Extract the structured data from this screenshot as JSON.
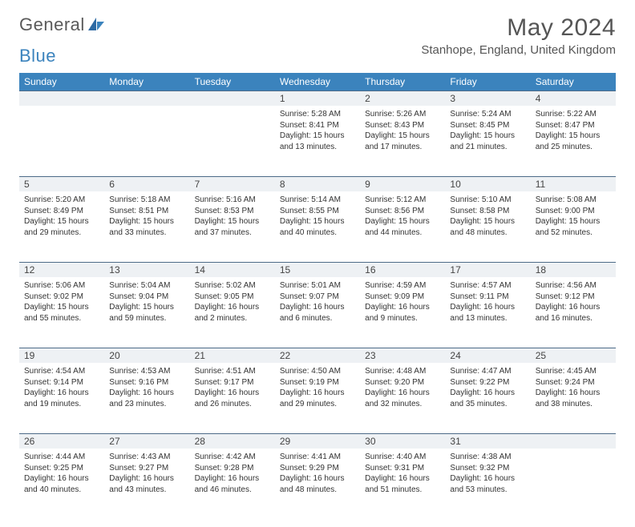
{
  "brand": {
    "word1": "General",
    "word2": "Blue"
  },
  "title": "May 2024",
  "location": "Stanhope, England, United Kingdom",
  "colors": {
    "header_bg": "#3b83bd",
    "header_text": "#ffffff",
    "daynum_bg": "#eef1f4",
    "daynum_border": "#4d6b88",
    "body_text": "#333333",
    "title_text": "#555555"
  },
  "weekdays": [
    "Sunday",
    "Monday",
    "Tuesday",
    "Wednesday",
    "Thursday",
    "Friday",
    "Saturday"
  ],
  "weeks": [
    [
      null,
      null,
      null,
      {
        "n": "1",
        "sr": "5:28 AM",
        "ss": "8:41 PM",
        "dl1": "15 hours",
        "dl2": "and 13 minutes."
      },
      {
        "n": "2",
        "sr": "5:26 AM",
        "ss": "8:43 PM",
        "dl1": "15 hours",
        "dl2": "and 17 minutes."
      },
      {
        "n": "3",
        "sr": "5:24 AM",
        "ss": "8:45 PM",
        "dl1": "15 hours",
        "dl2": "and 21 minutes."
      },
      {
        "n": "4",
        "sr": "5:22 AM",
        "ss": "8:47 PM",
        "dl1": "15 hours",
        "dl2": "and 25 minutes."
      }
    ],
    [
      {
        "n": "5",
        "sr": "5:20 AM",
        "ss": "8:49 PM",
        "dl1": "15 hours",
        "dl2": "and 29 minutes."
      },
      {
        "n": "6",
        "sr": "5:18 AM",
        "ss": "8:51 PM",
        "dl1": "15 hours",
        "dl2": "and 33 minutes."
      },
      {
        "n": "7",
        "sr": "5:16 AM",
        "ss": "8:53 PM",
        "dl1": "15 hours",
        "dl2": "and 37 minutes."
      },
      {
        "n": "8",
        "sr": "5:14 AM",
        "ss": "8:55 PM",
        "dl1": "15 hours",
        "dl2": "and 40 minutes."
      },
      {
        "n": "9",
        "sr": "5:12 AM",
        "ss": "8:56 PM",
        "dl1": "15 hours",
        "dl2": "and 44 minutes."
      },
      {
        "n": "10",
        "sr": "5:10 AM",
        "ss": "8:58 PM",
        "dl1": "15 hours",
        "dl2": "and 48 minutes."
      },
      {
        "n": "11",
        "sr": "5:08 AM",
        "ss": "9:00 PM",
        "dl1": "15 hours",
        "dl2": "and 52 minutes."
      }
    ],
    [
      {
        "n": "12",
        "sr": "5:06 AM",
        "ss": "9:02 PM",
        "dl1": "15 hours",
        "dl2": "and 55 minutes."
      },
      {
        "n": "13",
        "sr": "5:04 AM",
        "ss": "9:04 PM",
        "dl1": "15 hours",
        "dl2": "and 59 minutes."
      },
      {
        "n": "14",
        "sr": "5:02 AM",
        "ss": "9:05 PM",
        "dl1": "16 hours",
        "dl2": "and 2 minutes."
      },
      {
        "n": "15",
        "sr": "5:01 AM",
        "ss": "9:07 PM",
        "dl1": "16 hours",
        "dl2": "and 6 minutes."
      },
      {
        "n": "16",
        "sr": "4:59 AM",
        "ss": "9:09 PM",
        "dl1": "16 hours",
        "dl2": "and 9 minutes."
      },
      {
        "n": "17",
        "sr": "4:57 AM",
        "ss": "9:11 PM",
        "dl1": "16 hours",
        "dl2": "and 13 minutes."
      },
      {
        "n": "18",
        "sr": "4:56 AM",
        "ss": "9:12 PM",
        "dl1": "16 hours",
        "dl2": "and 16 minutes."
      }
    ],
    [
      {
        "n": "19",
        "sr": "4:54 AM",
        "ss": "9:14 PM",
        "dl1": "16 hours",
        "dl2": "and 19 minutes."
      },
      {
        "n": "20",
        "sr": "4:53 AM",
        "ss": "9:16 PM",
        "dl1": "16 hours",
        "dl2": "and 23 minutes."
      },
      {
        "n": "21",
        "sr": "4:51 AM",
        "ss": "9:17 PM",
        "dl1": "16 hours",
        "dl2": "and 26 minutes."
      },
      {
        "n": "22",
        "sr": "4:50 AM",
        "ss": "9:19 PM",
        "dl1": "16 hours",
        "dl2": "and 29 minutes."
      },
      {
        "n": "23",
        "sr": "4:48 AM",
        "ss": "9:20 PM",
        "dl1": "16 hours",
        "dl2": "and 32 minutes."
      },
      {
        "n": "24",
        "sr": "4:47 AM",
        "ss": "9:22 PM",
        "dl1": "16 hours",
        "dl2": "and 35 minutes."
      },
      {
        "n": "25",
        "sr": "4:45 AM",
        "ss": "9:24 PM",
        "dl1": "16 hours",
        "dl2": "and 38 minutes."
      }
    ],
    [
      {
        "n": "26",
        "sr": "4:44 AM",
        "ss": "9:25 PM",
        "dl1": "16 hours",
        "dl2": "and 40 minutes."
      },
      {
        "n": "27",
        "sr": "4:43 AM",
        "ss": "9:27 PM",
        "dl1": "16 hours",
        "dl2": "and 43 minutes."
      },
      {
        "n": "28",
        "sr": "4:42 AM",
        "ss": "9:28 PM",
        "dl1": "16 hours",
        "dl2": "and 46 minutes."
      },
      {
        "n": "29",
        "sr": "4:41 AM",
        "ss": "9:29 PM",
        "dl1": "16 hours",
        "dl2": "and 48 minutes."
      },
      {
        "n": "30",
        "sr": "4:40 AM",
        "ss": "9:31 PM",
        "dl1": "16 hours",
        "dl2": "and 51 minutes."
      },
      {
        "n": "31",
        "sr": "4:38 AM",
        "ss": "9:32 PM",
        "dl1": "16 hours",
        "dl2": "and 53 minutes."
      },
      null
    ]
  ],
  "labels": {
    "sunrise_prefix": "Sunrise: ",
    "sunset_prefix": "Sunset: ",
    "daylight_prefix": "Daylight: "
  }
}
